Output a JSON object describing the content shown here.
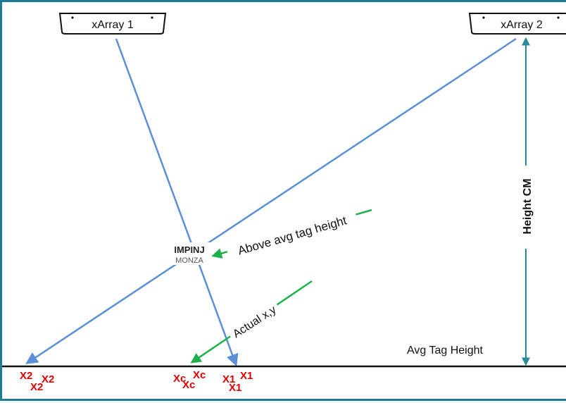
{
  "readers": {
    "reader1": "xArray 1",
    "reader2": "xArray 2"
  },
  "labels": {
    "height": "Height CM",
    "above": "Above avg tag height",
    "actual": "Actual x,y",
    "avg_tag_height": "Avg Tag Height"
  },
  "tag_logo": {
    "brand": "IMPINJ",
    "model": "MONZA"
  },
  "markers": {
    "x2": [
      "X2",
      "X2",
      "X2"
    ],
    "xc": [
      "Xc",
      "Xc",
      "Xc"
    ],
    "x1": [
      "X1",
      "X1",
      "X1"
    ]
  },
  "colors": {
    "frame": "#1F7A96",
    "ray": "#5B8FD6",
    "pointer": "#1DB04B",
    "marker": "#E00000",
    "height_arrow": "#2A8A9C"
  }
}
